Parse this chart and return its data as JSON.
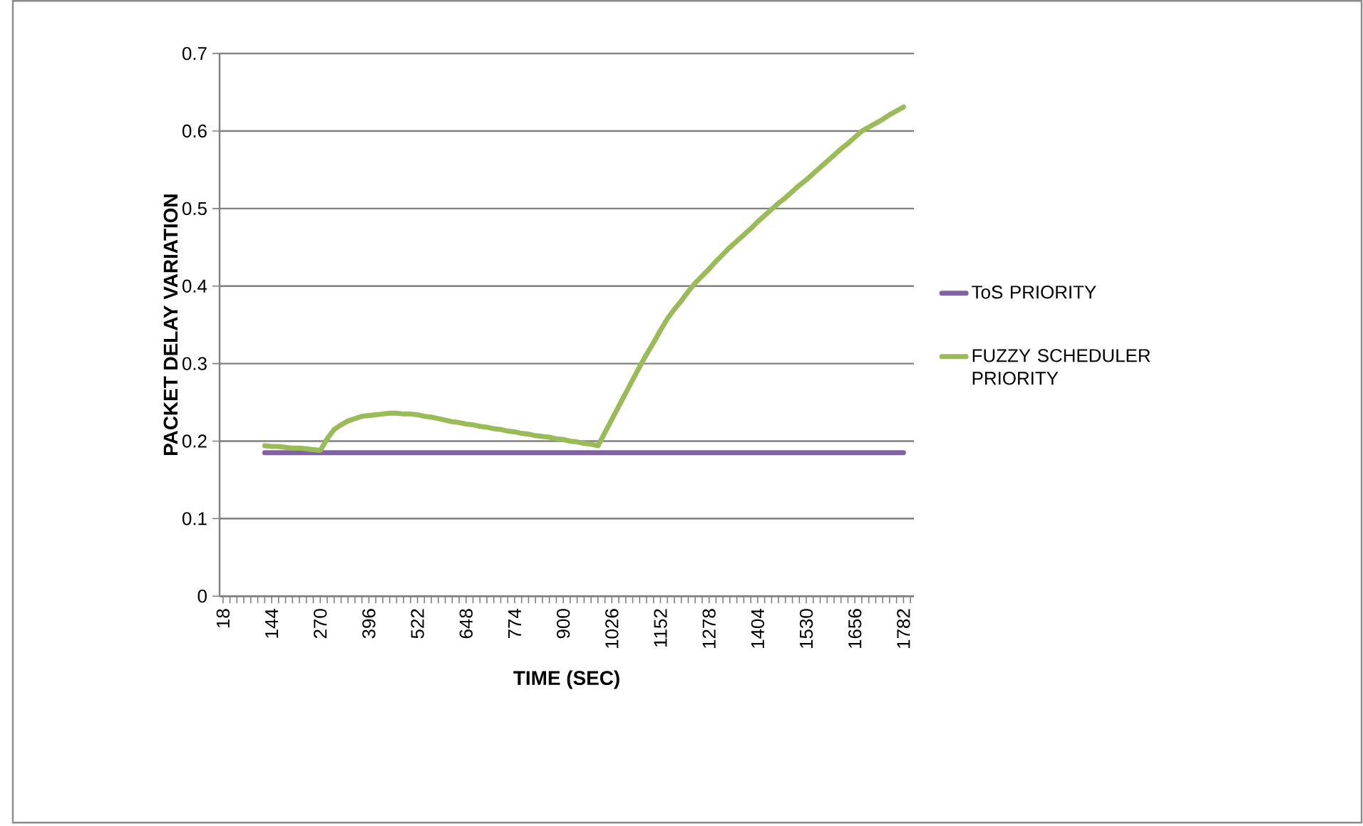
{
  "chart_data": {
    "type": "line",
    "xlabel": "TIME (SEC)",
    "ylabel": "PACKET DELAY VARIATION",
    "categories": [
      "18",
      null,
      null,
      null,
      null,
      null,
      null,
      "144",
      null,
      null,
      null,
      null,
      null,
      null,
      "270",
      null,
      null,
      null,
      null,
      null,
      null,
      "396",
      null,
      null,
      null,
      null,
      null,
      null,
      "522",
      null,
      null,
      null,
      null,
      null,
      null,
      "648",
      null,
      null,
      null,
      null,
      null,
      null,
      "774",
      null,
      null,
      null,
      null,
      null,
      null,
      "900",
      null,
      null,
      null,
      null,
      null,
      null,
      "1026",
      null,
      null,
      null,
      null,
      null,
      null,
      "1152",
      null,
      null,
      null,
      null,
      null,
      null,
      "1278",
      null,
      null,
      null,
      null,
      null,
      null,
      "1404",
      null,
      null,
      null,
      null,
      null,
      null,
      "1530",
      null,
      null,
      null,
      null,
      null,
      null,
      "1656",
      null,
      null,
      null,
      null,
      null,
      null,
      "1782",
      null
    ],
    "series": [
      {
        "name": "ToS PRIORITY",
        "color": "#8064a2",
        "values": [
          null,
          null,
          null,
          null,
          null,
          null,
          0.185,
          0.185,
          0.185,
          0.185,
          0.185,
          0.185,
          0.185,
          0.185,
          0.185,
          0.185,
          0.185,
          0.185,
          0.185,
          0.185,
          0.185,
          0.185,
          0.185,
          0.185,
          0.185,
          0.185,
          0.185,
          0.185,
          0.185,
          0.185,
          0.185,
          0.185,
          0.185,
          0.185,
          0.185,
          0.185,
          0.185,
          0.185,
          0.185,
          0.185,
          0.185,
          0.185,
          0.185,
          0.185,
          0.185,
          0.185,
          0.185,
          0.185,
          0.185,
          0.185,
          0.185,
          0.185,
          0.185,
          0.185,
          0.185,
          0.185,
          0.185,
          0.185,
          0.185,
          0.185,
          0.185,
          0.185,
          0.185,
          0.185,
          0.185,
          0.185,
          0.185,
          0.185,
          0.185,
          0.185,
          0.185,
          0.185,
          0.185,
          0.185,
          0.185,
          0.185,
          0.185,
          0.185,
          0.185,
          0.185,
          0.185,
          0.185,
          0.185,
          0.185,
          0.185,
          0.185,
          0.185,
          0.185,
          0.185,
          0.185,
          0.185,
          0.185,
          0.185,
          0.185,
          0.185,
          0.185,
          0.185,
          0.185,
          0.185,
          null
        ]
      },
      {
        "name": "FUZZY SCHEDULER PRIORITY",
        "color": "#9bbb59",
        "values": [
          null,
          null,
          null,
          null,
          null,
          null,
          0.194,
          0.193,
          0.193,
          0.192,
          0.191,
          0.191,
          0.19,
          0.189,
          0.188,
          0.203,
          0.215,
          0.221,
          0.226,
          0.229,
          0.232,
          0.233,
          0.234,
          0.235,
          0.236,
          0.236,
          0.235,
          0.235,
          0.234,
          0.232,
          0.231,
          0.229,
          0.227,
          0.225,
          0.224,
          0.222,
          0.221,
          0.219,
          0.218,
          0.216,
          0.215,
          0.213,
          0.212,
          0.21,
          0.209,
          0.207,
          0.206,
          0.205,
          0.203,
          0.202,
          0.2,
          0.199,
          0.197,
          0.196,
          0.194,
          0.211,
          0.228,
          0.245,
          0.262,
          0.279,
          0.296,
          0.312,
          0.327,
          0.343,
          0.358,
          0.37,
          0.381,
          0.393,
          0.404,
          0.413,
          0.422,
          0.432,
          0.441,
          0.45,
          0.458,
          0.466,
          0.474,
          0.483,
          0.491,
          0.499,
          0.507,
          0.514,
          0.522,
          0.53,
          0.537,
          0.545,
          0.553,
          0.561,
          0.569,
          0.577,
          0.584,
          0.592,
          0.6,
          0.605,
          0.61,
          0.615,
          0.621,
          0.626,
          0.631,
          null
        ]
      }
    ],
    "ylim": [
      0,
      0.7
    ],
    "yticks": [
      0,
      0.1,
      0.2,
      0.3,
      0.4,
      0.5,
      0.6,
      0.7
    ],
    "grid": "y",
    "legend": "right",
    "marker": "none",
    "line_style": "solid"
  }
}
